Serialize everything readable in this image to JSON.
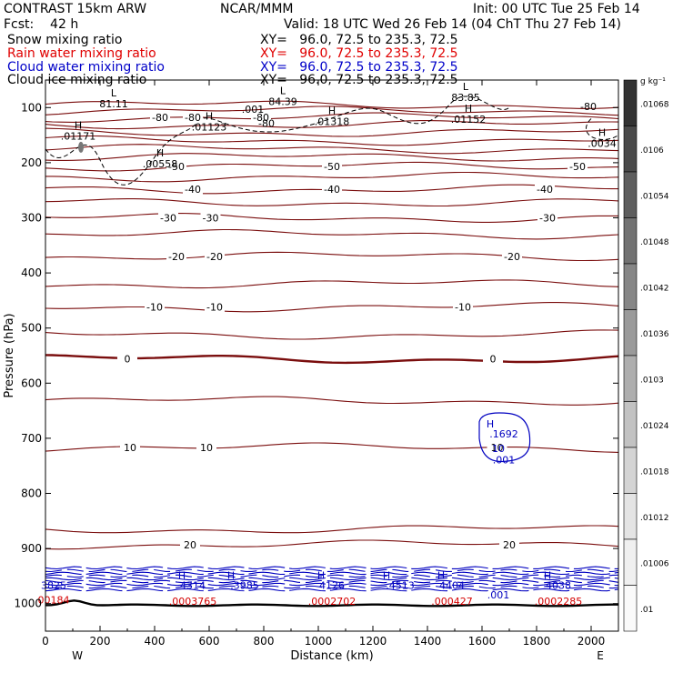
{
  "header": {
    "left_title": "CONTRAST 15km ARW",
    "fcst": "Fcst:    42 h",
    "center": "NCAR/MMM",
    "init": "Init: 00 UTC Tue 25 Feb 14",
    "valid": "Valid: 18 UTC Wed 26 Feb 14 (04 ChT Thu 27 Feb 14)",
    "fields": [
      {
        "label": "Snow mixing ratio",
        "xy": "XY=   96.0, 72.5 to 235.3, 72.5",
        "color": "#000000"
      },
      {
        "label": "Rain water mixing ratio",
        "xy": "XY=   96.0, 72.5 to 235.3, 72.5",
        "color": "#e00000"
      },
      {
        "label": "Cloud water mixing ratio",
        "xy": "XY=   96.0, 72.5 to 235.3, 72.5",
        "color": "#0000c8"
      },
      {
        "label": "Cloud ice mixing ratio",
        "xy": "XY=   96.0, 72.5 to 235.3, 72.5",
        "color": "#000000"
      }
    ]
  },
  "chart_data": {
    "type": "cross-section contour",
    "xlabel": "Distance (km)",
    "ylabel": "Pressure (hPa)",
    "xlim": [
      0,
      2100
    ],
    "ylim": [
      1050,
      50
    ],
    "xticks": [
      0,
      200,
      400,
      600,
      800,
      1000,
      1200,
      1400,
      1600,
      1800,
      2000
    ],
    "yticks": [
      100,
      200,
      300,
      400,
      500,
      600,
      700,
      800,
      900,
      1000
    ],
    "x_end_labels": {
      "left": "W",
      "right": "E"
    },
    "temperature_contours": {
      "units": "deg C",
      "interval": 5,
      "levels": [
        {
          "value": 15,
          "pressure": 865,
          "label": "",
          "labels_at": []
        },
        {
          "value": 20,
          "pressure": 893,
          "label": "20",
          "labels_at": [
            530,
            1700
          ]
        },
        {
          "value": 10,
          "pressure": 717,
          "label": "10",
          "labels_at": [
            310,
            590,
            1655
          ]
        },
        {
          "value": 5,
          "pressure": 632,
          "label": "",
          "labels_at": []
        },
        {
          "value": 0,
          "pressure": 556,
          "label": "0",
          "labels_at": [
            300,
            1640
          ]
        },
        {
          "value": -5,
          "pressure": 512,
          "label": "",
          "labels_at": []
        },
        {
          "value": -10,
          "pressure": 462,
          "label": "-10",
          "labels_at": [
            400,
            620,
            1530
          ]
        },
        {
          "value": -15,
          "pressure": 420,
          "label": "",
          "labels_at": []
        },
        {
          "value": -20,
          "pressure": 370,
          "label": "-20",
          "labels_at": [
            480,
            620,
            1710
          ]
        },
        {
          "value": -25,
          "pressure": 330,
          "label": "",
          "labels_at": []
        },
        {
          "value": -30,
          "pressure": 300,
          "label": "-30",
          "labels_at": [
            450,
            605,
            1840
          ]
        },
        {
          "value": -35,
          "pressure": 272,
          "label": "",
          "labels_at": []
        },
        {
          "value": -40,
          "pressure": 248,
          "label": "-40",
          "labels_at": [
            540,
            1050,
            1830
          ]
        },
        {
          "value": -45,
          "pressure": 226,
          "label": "",
          "labels_at": []
        },
        {
          "value": -50,
          "pressure": 207,
          "label": "-50",
          "labels_at": [
            480,
            1050,
            1950
          ]
        },
        {
          "value": -55,
          "pressure": 190,
          "label": "",
          "labels_at": []
        },
        {
          "value": -60,
          "pressure": 175,
          "label": "",
          "labels_at": []
        },
        {
          "value": -65,
          "pressure": 160,
          "label": "",
          "labels_at": []
        },
        {
          "value": -70,
          "pressure": 145,
          "label": "",
          "labels_at": []
        },
        {
          "value": -75,
          "pressure": 131,
          "label": "",
          "labels_at": []
        },
        {
          "value": -80,
          "pressure": 118,
          "label": "-80",
          "labels_at": [
            420,
            540,
            790
          ]
        },
        {
          "value": -85,
          "pressure": 106,
          "label": "",
          "labels_at": []
        },
        {
          "value": -90,
          "pressure": 95,
          "label": "",
          "labels_at": []
        }
      ],
      "extra_labels": [
        {
          "text": "-80",
          "x": 1990,
          "p": 98
        },
        {
          "text": "-80",
          "x": 810,
          "p": 128
        }
      ]
    },
    "snow_extrema": [
      {
        "kind": "L",
        "value": "81.11",
        "x": 250,
        "p": 96
      },
      {
        "kind": "L",
        "value": "84.39",
        "x": 870,
        "p": 92
      },
      {
        "kind": "L",
        "value": "83.85",
        "x": 1540,
        "p": 85
      },
      {
        "kind": "H",
        "value": ".01171",
        "x": 120,
        "p": 155
      },
      {
        "kind": "H",
        "value": ".01123",
        "x": 600,
        "p": 138
      },
      {
        "kind": "H",
        "value": ".01318",
        "x": 1050,
        "p": 128
      },
      {
        "kind": "H",
        "value": ".01152",
        "x": 1550,
        "p": 124
      },
      {
        "kind": "H",
        "value": ".0034",
        "x": 2040,
        "p": 168
      },
      {
        "kind": "H",
        "value": ".00558",
        "x": 420,
        "p": 205
      },
      {
        "kind": "",
        "value": ".001",
        "x": 760,
        "p": 106
      }
    ],
    "cloud_water_extrema": [
      {
        "kind": "H",
        "value": ".1692",
        "x": 1680,
        "p": 690
      },
      {
        "kind": "",
        "value": "10",
        "x": 1660,
        "p": 717
      },
      {
        "kind": "",
        "value": ".001",
        "x": 1680,
        "p": 737
      },
      {
        "kind": "",
        "value": "3825",
        "x": 30,
        "p": 965
      },
      {
        "kind": "H",
        "value": "4314",
        "x": 540,
        "p": 965
      },
      {
        "kind": "H",
        "value": ".3985",
        "x": 730,
        "p": 965
      },
      {
        "kind": "H",
        "value": "4126",
        "x": 1050,
        "p": 965
      },
      {
        "kind": "H",
        "value": ".4513",
        "x": 1300,
        "p": 965
      },
      {
        "kind": "H",
        "value": "4404",
        "x": 1490,
        "p": 965
      },
      {
        "kind": "",
        "value": ".001",
        "x": 1660,
        "p": 982
      },
      {
        "kind": "H",
        "value": "4038",
        "x": 1880,
        "p": 965
      }
    ],
    "rain_extrema": [
      {
        "kind": "",
        "value": "00184",
        "x": 30,
        "p": 980
      },
      {
        "kind": "",
        "value": ".0003765",
        "x": 540,
        "p": 982
      },
      {
        "kind": "",
        "value": ".0002702",
        "x": 1050,
        "p": 982
      },
      {
        "kind": "",
        "value": ".000427",
        "x": 1490,
        "p": 982
      },
      {
        "kind": "",
        "value": ".0002285",
        "x": 1880,
        "p": 982
      }
    ],
    "colorbar": {
      "units": "g kg⁻¹",
      "ticks": [
        ".01068",
        ".0106",
        ".01054",
        ".01048",
        ".01042",
        ".01036",
        ".0103",
        ".01024",
        ".01018",
        ".01012",
        ".01006",
        ".01"
      ],
      "fills": [
        "#333333",
        "#4a4a4a",
        "#5e5e5e",
        "#727272",
        "#868686",
        "#9a9a9a",
        "#aeaeae",
        "#c2c2c2",
        "#d4d4d4",
        "#e4e4e4",
        "#f0f0f0",
        "#fafafa"
      ]
    },
    "colors": {
      "temperature": "#7a0d0d",
      "zero_isotherm": "#7a0d0d",
      "rain": "#d40000",
      "cloud_water": "#0000c0",
      "snow": "#000000",
      "ground": "#000000"
    }
  }
}
